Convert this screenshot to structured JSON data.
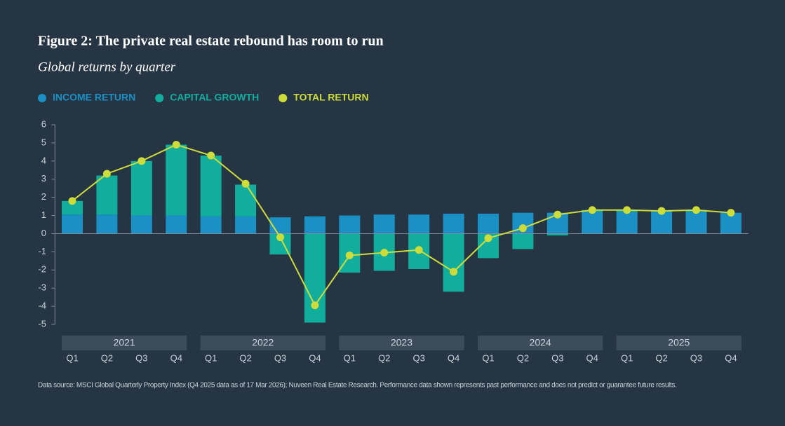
{
  "chart_data": {
    "type": "stacked_bar_line",
    "title": "Figure 2: The private real estate rebound has room to run",
    "subtitle": "Global returns by quarter",
    "categories": [
      "Q1",
      "Q2",
      "Q3",
      "Q4",
      "Q1",
      "Q2",
      "Q3",
      "Q4",
      "Q1",
      "Q2",
      "Q3",
      "Q4",
      "Q1",
      "Q2",
      "Q3",
      "Q4",
      "Q1",
      "Q2",
      "Q3",
      "Q4"
    ],
    "year_groups": [
      "2021",
      "2022",
      "2023",
      "2024",
      "2025"
    ],
    "series": [
      {
        "name": "INCOME RETURN",
        "color": "#1a90c4",
        "kind": "bar",
        "values": [
          1.05,
          1.05,
          1.0,
          1.0,
          0.95,
          0.95,
          0.9,
          0.95,
          1.0,
          1.05,
          1.05,
          1.1,
          1.1,
          1.15,
          1.15,
          1.2,
          1.2,
          1.2,
          1.2,
          1.15
        ]
      },
      {
        "name": "CAPITAL GROWTH",
        "color": "#12ae9d",
        "kind": "bar",
        "values": [
          0.75,
          2.15,
          3.0,
          3.9,
          3.35,
          1.75,
          -1.15,
          -4.9,
          -2.15,
          -2.05,
          -1.95,
          -3.2,
          -1.35,
          -0.85,
          -0.1,
          0.1,
          0.1,
          0.05,
          0.1,
          0.0
        ]
      },
      {
        "name": "TOTAL RETURN",
        "color": "#cddc39",
        "kind": "line",
        "values": [
          1.8,
          3.3,
          4.0,
          4.9,
          4.3,
          2.75,
          -0.2,
          -3.95,
          -1.2,
          -1.05,
          -0.9,
          -2.1,
          -0.25,
          0.3,
          1.05,
          1.3,
          1.3,
          1.25,
          1.3,
          1.15
        ]
      }
    ],
    "ylim": [
      -5,
      6
    ],
    "yticks": [
      -5,
      -4,
      -3,
      -2,
      -1,
      0,
      1,
      2,
      3,
      4,
      5,
      6
    ],
    "footnote": "Data source: MSCI Global Quarterly Property Index (Q4 2025 data as of 17 Mar 2026); Nuveen Real Estate Research. Performance data shown represents past performance and does not predict or guarantee future results."
  }
}
